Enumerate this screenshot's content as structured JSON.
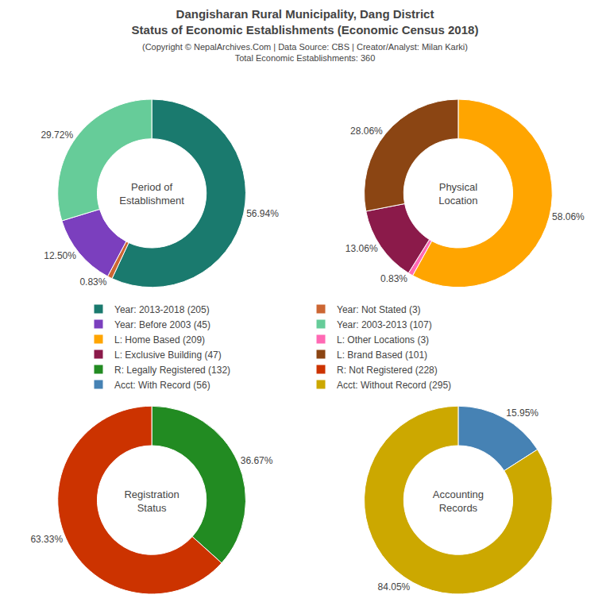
{
  "title": "Dangisharan Rural Municipality, Dang District\nStatus of Economic Establishments (Economic Census 2018)",
  "subtitle": "(Copyright © NepalArchives.Com | Data Source: CBS | Creator/Analyst: Milan Karki)\nTotal Economic Establishments: 360",
  "chart_data": [
    {
      "type": "pie",
      "title": "Period of\nEstablishment",
      "categories": [
        "Year: 2013-2018 (205)",
        "Year: Not Stated (3)",
        "Year: Before 2003 (45)",
        "Year: 2003-2013 (107)"
      ],
      "values": [
        56.94,
        0.83,
        12.5,
        29.72
      ],
      "value_labels": [
        "56.94%",
        "0.83%",
        "12.50%",
        "29.72%"
      ],
      "colors": [
        "#1A7A6E",
        "#CC6633",
        "#7B3FBE",
        "#66CC99"
      ],
      "data_labels": true,
      "legend": "center"
    },
    {
      "type": "pie",
      "title": "Physical\nLocation",
      "categories": [
        "L: Home Based (209)",
        "L: Other Locations (3)",
        "L: Exclusive Building (47)",
        "L: Brand Based (101)"
      ],
      "values": [
        58.06,
        0.83,
        13.06,
        28.06
      ],
      "value_labels": [
        "58.06%",
        "0.83%",
        "13.06%",
        "28.06%"
      ],
      "colors": [
        "#FFA500",
        "#FF69B4",
        "#8B1A4A",
        "#8B4513"
      ],
      "data_labels": true,
      "legend": "center"
    },
    {
      "type": "pie",
      "title": "Registration\nStatus",
      "categories": [
        "R: Legally Registered (132)",
        "R: Not Registered (228)"
      ],
      "values": [
        36.67,
        63.33
      ],
      "value_labels": [
        "36.67%",
        "63.33%"
      ],
      "colors": [
        "#228B22",
        "#CC3300"
      ],
      "data_labels": true,
      "legend": "center"
    },
    {
      "type": "pie",
      "title": "Accounting\nRecords",
      "categories": [
        "Acct: With Record (56)",
        "Acct: Without Record (295)"
      ],
      "values": [
        15.95,
        84.05
      ],
      "value_labels": [
        "15.95%",
        "84.05%"
      ],
      "colors": [
        "#4682B4",
        "#CCA800"
      ],
      "data_labels": true,
      "legend": "center"
    }
  ]
}
